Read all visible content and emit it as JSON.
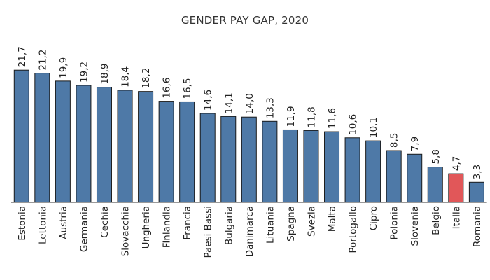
{
  "chart_data": {
    "type": "bar",
    "title": "GENDER PAY GAP, 2020",
    "xlabel": "",
    "ylabel": "",
    "ylim": [
      0,
      22
    ],
    "grid": false,
    "legend": "none",
    "categories": [
      "Estonia",
      "Lettonia",
      "Austria",
      "Germania",
      "Cechia",
      "Slovacchia",
      "Ungheria",
      "Finlandia",
      "Francia",
      "Paesi Bassi",
      "Bulgaria",
      "Danimarca",
      "Lituania",
      "Spagna",
      "Svezia",
      "Malta",
      "Portogallo",
      "Cipro",
      "Polonia",
      "Slovenia",
      "Belgio",
      "Italia",
      "Romania"
    ],
    "values": [
      21.7,
      21.2,
      19.9,
      19.2,
      18.9,
      18.4,
      18.2,
      16.6,
      16.5,
      14.6,
      14.1,
      14.0,
      13.3,
      11.9,
      11.8,
      11.6,
      10.6,
      10.1,
      8.5,
      7.9,
      5.8,
      4.7,
      3.3
    ],
    "value_labels": [
      "21,7",
      "21,2",
      "19,9",
      "19,2",
      "18,9",
      "18,4",
      "18,2",
      "16,6",
      "16,5",
      "14,6",
      "14,1",
      "14,0",
      "13,3",
      "11,9",
      "11,8",
      "11,6",
      "10,6",
      "10,1",
      "8,5",
      "7,9",
      "5,8",
      "4,7",
      "3,3"
    ],
    "highlight_category": "Italia",
    "colors": {
      "bar": "#4e79a7",
      "highlight": "#e15759",
      "bar_outline": "#1a1a1a",
      "axis": "#999999",
      "text": "#222222"
    }
  }
}
